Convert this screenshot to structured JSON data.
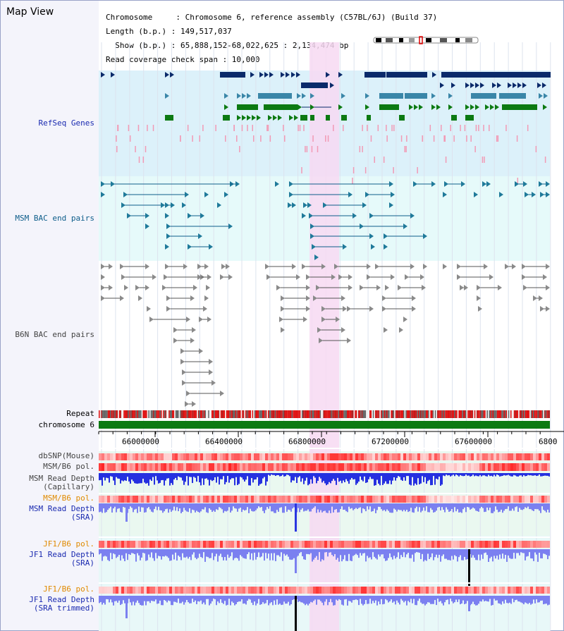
{
  "title": "Map View",
  "info": {
    "line1": "Chromosome     : Chromosome 6, reference assembly (C57BL/6J) (Build 37)",
    "line2": "Length (b.p.) : 149,517,037",
    "line3": "  Show (b.p.) : 65,888,152-68,022,625 : 2,134,474 bp",
    "line4": "Read coverage check span : 10,000"
  },
  "tracks": {
    "refseq": "RefSeq Genes",
    "msm_bac": "MSM BAC end pairs",
    "b6n_bac": "B6N BAC end pairs",
    "repeat": "Repeat",
    "chromosome": "chromosome 6",
    "dbsnp": "dbSNP(Mouse)",
    "msm_pol1": "MSM/B6 pol.",
    "msm_depth_cap_1": "MSM Read Depth",
    "msm_depth_cap_2": "(Capillary)",
    "msm_pol2": "MSM/B6 pol.",
    "msm_depth_sra_1": "MSM Read Depth",
    "msm_depth_sra_2": "(SRA)",
    "jf1_pol1": "JF1/B6 pol.",
    "jf1_depth_sra_1": "JF1 Read Depth",
    "jf1_depth_sra_2": "(SRA)",
    "jf1_pol2": "JF1/B6 pol.",
    "jf1_depth_trim_1": "JF1 Read Depth",
    "jf1_depth_trim_2": "(SRA trimmed)"
  },
  "axis": {
    "ticks": [
      "66000000",
      "66400000",
      "66800000",
      "67200000",
      "67600000",
      "6800"
    ]
  },
  "colors": {
    "highlight": "#f7d9f2",
    "refseq_bg": "#dcf1fa",
    "bac_bg": "#e6fafa",
    "gene_navy": "#0a2a6a",
    "gene_steel": "#3a86a8",
    "gene_green": "#0c7a12",
    "snp_pink": "#f29ab5",
    "chrom_green": "#0c7a12",
    "depth_blue": "#2530e0",
    "depth_light": "#7b80f0"
  }
}
